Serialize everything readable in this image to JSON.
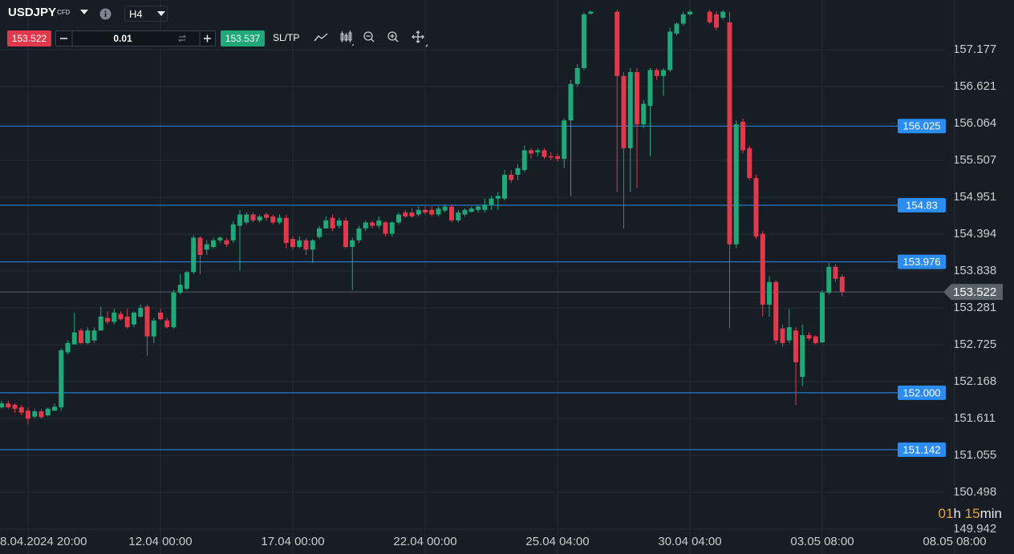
{
  "toolbar": {
    "symbol": "USDJPY",
    "badge": "CFD",
    "timeframe": "H4",
    "sell_price": "153.522",
    "lot": "0.01",
    "buy_price": "153.537",
    "sltp": "SL/TP"
  },
  "countdown": {
    "hours": "01",
    "hours_unit": "h",
    "minutes": "15",
    "minutes_unit": "min"
  },
  "chart_data": {
    "type": "candlestick",
    "categories": [
      null,
      null,
      null,
      null,
      "8.04.2024 20:00",
      null,
      null,
      null,
      null,
      null,
      null,
      null,
      null,
      null,
      null,
      null,
      null,
      null,
      null,
      null,
      null,
      null,
      null,
      null,
      "12.04 00:00",
      null,
      null,
      null,
      null,
      null,
      null,
      null,
      null,
      null,
      null,
      null,
      null,
      null,
      null,
      null,
      null,
      null,
      null,
      null,
      "17.04 00:00",
      null,
      null,
      null,
      null,
      null,
      null,
      null,
      null,
      null,
      null,
      null,
      null,
      null,
      null,
      null,
      null,
      null,
      null,
      null,
      "22.04 00:00",
      null,
      null,
      null,
      null,
      null,
      null,
      null,
      null,
      null,
      null,
      null,
      null,
      null,
      null,
      null,
      null,
      null,
      null,
      null,
      "25.04 04:00",
      null,
      null,
      null,
      null,
      null,
      null,
      null,
      null,
      null,
      null,
      null,
      null,
      null,
      null,
      null,
      null,
      null,
      null,
      null,
      "30.04 04:00",
      null,
      null,
      null,
      null,
      null,
      null,
      null,
      null,
      null,
      null,
      null,
      null,
      null,
      null,
      null,
      null,
      null,
      null,
      null,
      "03.05 08:00",
      null,
      null,
      null,
      null,
      null,
      null,
      null,
      null,
      null,
      null,
      null,
      null,
      null,
      null,
      null,
      null,
      null,
      null,
      null,
      "08.05 08:00"
    ],
    "candles": [
      [
        151.78,
        151.88,
        151.76,
        151.84
      ],
      [
        151.84,
        151.88,
        151.76,
        151.78
      ],
      [
        151.82,
        151.84,
        151.7,
        151.76
      ],
      [
        151.78,
        151.82,
        151.66,
        151.7
      ],
      [
        151.73,
        151.78,
        151.52,
        151.61
      ],
      [
        151.64,
        151.76,
        151.61,
        151.72
      ],
      [
        151.72,
        151.76,
        151.61,
        151.63
      ],
      [
        151.66,
        151.78,
        151.64,
        151.76
      ],
      [
        151.73,
        151.84,
        151.72,
        151.79
      ],
      [
        151.78,
        152.67,
        151.73,
        152.64
      ],
      [
        152.61,
        152.79,
        152.58,
        152.75
      ],
      [
        152.73,
        153.21,
        152.73,
        152.91
      ],
      [
        152.94,
        152.97,
        152.73,
        152.75
      ],
      [
        152.75,
        152.99,
        152.73,
        152.94
      ],
      [
        152.79,
        152.99,
        152.75,
        152.94
      ],
      [
        152.94,
        153.3,
        152.94,
        153.15
      ],
      [
        153.13,
        153.23,
        153.03,
        153.07
      ],
      [
        153.07,
        153.27,
        153.03,
        153.21
      ],
      [
        153.19,
        153.23,
        153.09,
        153.11
      ],
      [
        153.15,
        153.27,
        152.97,
        152.99
      ],
      [
        153.03,
        153.23,
        152.99,
        153.21
      ],
      [
        153.15,
        153.33,
        153.13,
        153.28
      ],
      [
        153.3,
        153.33,
        152.56,
        152.85
      ],
      [
        152.85,
        153.13,
        152.75,
        153.09
      ],
      [
        153.21,
        153.27,
        153.09,
        153.11
      ],
      [
        153.09,
        153.13,
        152.97,
        152.99
      ],
      [
        152.99,
        153.55,
        152.97,
        153.51
      ],
      [
        153.51,
        153.79,
        153.48,
        153.63
      ],
      [
        153.57,
        153.84,
        153.55,
        153.82
      ],
      [
        153.82,
        154.38,
        153.79,
        154.34
      ],
      [
        154.34,
        154.36,
        153.79,
        154.08
      ],
      [
        154.16,
        154.3,
        154.08,
        154.24
      ],
      [
        154.2,
        154.34,
        154.18,
        154.3
      ],
      [
        154.3,
        154.36,
        154.26,
        154.34
      ],
      [
        154.3,
        154.34,
        154.2,
        154.24
      ],
      [
        154.3,
        154.59,
        154.26,
        154.54
      ],
      [
        154.52,
        154.76,
        153.84,
        154.69
      ],
      [
        154.57,
        154.72,
        154.54,
        154.69
      ],
      [
        154.69,
        154.72,
        154.57,
        154.6
      ],
      [
        154.6,
        154.69,
        154.57,
        154.66
      ],
      [
        154.69,
        154.72,
        154.6,
        154.64
      ],
      [
        154.66,
        154.69,
        154.54,
        154.57
      ],
      [
        154.57,
        154.69,
        154.54,
        154.64
      ],
      [
        154.64,
        154.69,
        154.18,
        154.26
      ],
      [
        154.32,
        154.36,
        154.16,
        154.2
      ],
      [
        154.2,
        154.36,
        154.18,
        154.3
      ],
      [
        154.3,
        154.34,
        154.08,
        154.16
      ],
      [
        154.16,
        154.32,
        153.96,
        154.3
      ],
      [
        154.35,
        154.52,
        154.32,
        154.48
      ],
      [
        154.48,
        154.66,
        154.48,
        154.6
      ],
      [
        154.64,
        154.69,
        154.44,
        154.48
      ],
      [
        154.52,
        154.64,
        154.48,
        154.6
      ],
      [
        154.6,
        154.64,
        154.18,
        154.2
      ],
      [
        154.2,
        154.34,
        153.55,
        154.3
      ],
      [
        154.3,
        154.52,
        154.26,
        154.48
      ],
      [
        154.48,
        154.6,
        154.44,
        154.57
      ],
      [
        154.57,
        154.6,
        154.48,
        154.52
      ],
      [
        154.52,
        154.66,
        154.48,
        154.6
      ],
      [
        154.57,
        154.59,
        154.36,
        154.4
      ],
      [
        154.4,
        154.59,
        154.36,
        154.57
      ],
      [
        154.57,
        154.72,
        154.54,
        154.69
      ],
      [
        154.72,
        154.76,
        154.64,
        154.66
      ],
      [
        154.72,
        154.78,
        154.64,
        154.66
      ],
      [
        154.69,
        154.81,
        154.66,
        154.76
      ],
      [
        154.76,
        154.81,
        154.69,
        154.72
      ],
      [
        154.76,
        154.81,
        154.66,
        154.69
      ],
      [
        154.69,
        154.81,
        154.66,
        154.78
      ],
      [
        154.75,
        154.84,
        154.72,
        154.81
      ],
      [
        154.81,
        154.84,
        154.57,
        154.6
      ],
      [
        154.6,
        154.76,
        154.57,
        154.72
      ],
      [
        154.69,
        154.78,
        154.66,
        154.76
      ],
      [
        154.73,
        154.81,
        154.72,
        154.78
      ],
      [
        154.76,
        154.84,
        154.72,
        154.81
      ],
      [
        154.76,
        154.93,
        154.72,
        154.84
      ],
      [
        154.84,
        154.97,
        154.76,
        154.93
      ],
      [
        154.93,
        155.03,
        154.76,
        154.97
      ],
      [
        154.93,
        155.36,
        154.9,
        155.29
      ],
      [
        155.29,
        155.36,
        155.17,
        155.21
      ],
      [
        155.29,
        155.45,
        155.21,
        155.39
      ],
      [
        155.36,
        155.73,
        155.33,
        155.66
      ],
      [
        155.66,
        155.69,
        155.53,
        155.61
      ],
      [
        155.63,
        155.69,
        155.57,
        155.66
      ],
      [
        155.66,
        155.69,
        155.53,
        155.56
      ],
      [
        155.57,
        155.63,
        155.51,
        155.55
      ],
      [
        155.57,
        155.61,
        155.49,
        155.53
      ],
      [
        155.53,
        156.14,
        155.39,
        156.11
      ],
      [
        156.11,
        156.72,
        154.97,
        156.66
      ],
      [
        156.66,
        156.96,
        156.62,
        156.9
      ],
      [
        156.9,
        157.74,
        156.87,
        157.71
      ],
      [
        157.72,
        157.77,
        157.71,
        157.75
      ],
      null,
      null,
      null,
      [
        157.75,
        157.78,
        155.03,
        156.78
      ],
      [
        156.78,
        156.84,
        154.48,
        155.69
      ],
      [
        155.69,
        156.9,
        155.03,
        156.84
      ],
      [
        156.84,
        156.9,
        155.09,
        156.05
      ],
      [
        156.05,
        156.42,
        155.99,
        156.36
      ],
      [
        156.33,
        156.9,
        155.57,
        156.87
      ],
      [
        156.87,
        156.9,
        156.72,
        156.78
      ],
      [
        156.78,
        156.9,
        156.48,
        156.87
      ],
      [
        156.87,
        157.51,
        156.84,
        157.45
      ],
      [
        157.42,
        157.59,
        157.39,
        157.57
      ],
      [
        157.57,
        157.75,
        157.54,
        157.71
      ],
      [
        157.71,
        157.78,
        157.69,
        157.75
      ],
      null,
      null,
      [
        157.75,
        157.78,
        157.57,
        157.59
      ],
      [
        157.71,
        157.76,
        157.47,
        157.51
      ],
      [
        157.66,
        157.78,
        157.63,
        157.75
      ],
      [
        157.59,
        157.75,
        152.97,
        154.24
      ],
      [
        154.24,
        156.11,
        154.18,
        156.05
      ],
      [
        156.09,
        156.14,
        155.61,
        155.66
      ],
      [
        155.69,
        155.73,
        155.21,
        155.24
      ],
      [
        155.24,
        155.29,
        154.32,
        154.36
      ],
      [
        154.4,
        154.44,
        153.15,
        153.33
      ],
      [
        153.33,
        153.76,
        153.15,
        153.67
      ],
      [
        153.67,
        153.7,
        152.73,
        152.79
      ],
      [
        152.97,
        153.03,
        152.7,
        152.75
      ],
      [
        152.79,
        153.27,
        152.75,
        152.99
      ],
      [
        152.94,
        152.99,
        151.82,
        152.46
      ],
      [
        152.24,
        153.03,
        152.1,
        152.87
      ],
      [
        152.87,
        152.91,
        152.79,
        152.82
      ],
      [
        152.85,
        152.87,
        152.73,
        152.75
      ],
      [
        152.76,
        153.55,
        152.75,
        153.51
      ],
      [
        153.51,
        153.96,
        153.48,
        153.9
      ],
      [
        153.9,
        153.94,
        153.67,
        153.72
      ],
      [
        153.75,
        153.79,
        153.45,
        153.52
      ],
      null,
      null,
      null,
      null,
      null,
      null,
      null,
      null,
      null,
      null,
      null,
      null,
      null,
      null,
      null,
      null,
      null
    ],
    "ylim": [
      149.567,
      157.927
    ],
    "yticks": [
      157.177,
      156.621,
      156.064,
      155.507,
      154.951,
      154.394,
      153.838,
      153.281,
      152.725,
      152.168,
      151.611,
      151.055,
      150.498,
      149.942
    ],
    "grid": true,
    "up_color": "#1fa878",
    "down_color": "#e0394c",
    "levels": [
      156.025,
      154.83,
      153.976,
      {
        "value": 152,
        "label": "152.000"
      },
      151.142
    ],
    "level_color": "#2b8cf2",
    "price_line": {
      "value": 153.522,
      "label": "153.522"
    }
  }
}
